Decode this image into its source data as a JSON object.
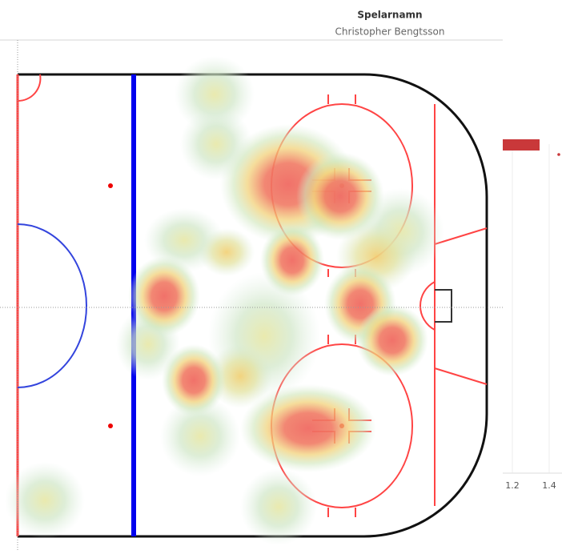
{
  "header": {
    "title": "Spelarnamn",
    "subtitle": "Christopher Bengtsson"
  },
  "side_axis": {
    "ticks": [
      1.2,
      1.4
    ]
  }
}
